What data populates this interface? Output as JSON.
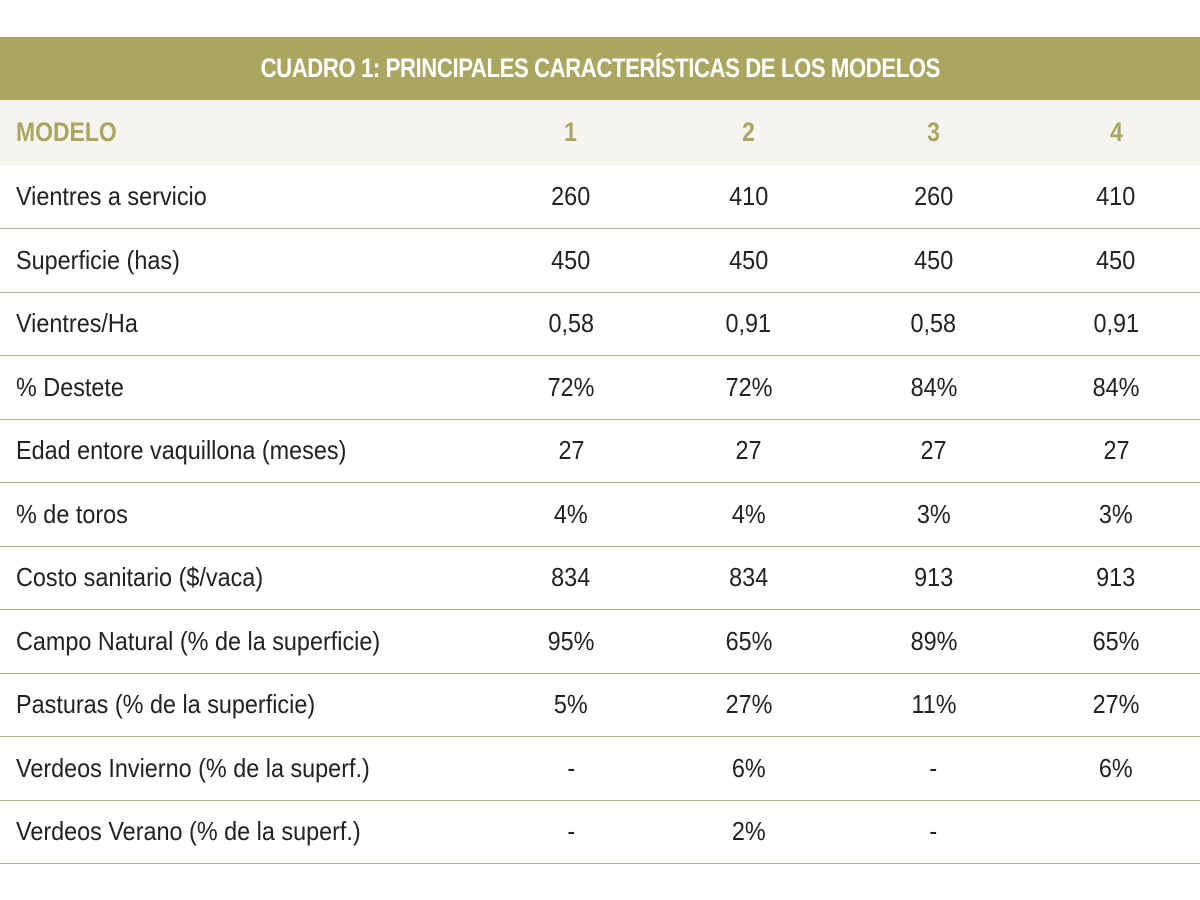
{
  "title": "CUADRO 1: PRINCIPALES CARACTERÍSTICAS DE LOS MODELOS",
  "colors": {
    "accent": "#aba65f",
    "header_row_bg": "#f5f4ee",
    "rule": "#b6b27a"
  },
  "header": {
    "label": "MODELO",
    "columns": [
      "1",
      "2",
      "3",
      "4"
    ]
  },
  "rows": [
    {
      "label": "Vientres a servicio",
      "values": [
        "260",
        "410",
        "260",
        "410"
      ]
    },
    {
      "label": "Superficie (has)",
      "values": [
        "450",
        "450",
        "450",
        "450"
      ]
    },
    {
      "label": "Vientres/Ha",
      "values": [
        "0,58",
        "0,91",
        "0,58",
        "0,91"
      ]
    },
    {
      "label": "% Destete",
      "values": [
        "72%",
        "72%",
        "84%",
        "84%"
      ]
    },
    {
      "label": "Edad entore vaquillona (meses)",
      "values": [
        "27",
        "27",
        "27",
        "27"
      ]
    },
    {
      "label": "% de toros",
      "values": [
        "4%",
        "4%",
        "3%",
        "3%"
      ]
    },
    {
      "label": "Costo sanitario ($/vaca)",
      "values": [
        "834",
        "834",
        "913",
        "913"
      ]
    },
    {
      "label": "Campo Natural (% de la superficie)",
      "values": [
        "95%",
        "65%",
        "89%",
        "65%"
      ]
    },
    {
      "label": "Pasturas (% de la superficie)",
      "values": [
        "5%",
        "27%",
        "11%",
        "27%"
      ]
    },
    {
      "label": "Verdeos Invierno (% de la superf.)",
      "values": [
        "-",
        "6%",
        "-",
        "6%"
      ]
    },
    {
      "label": "Verdeos Verano (% de la superf.)",
      "values": [
        "-",
        "2%",
        "-",
        ""
      ]
    }
  ]
}
